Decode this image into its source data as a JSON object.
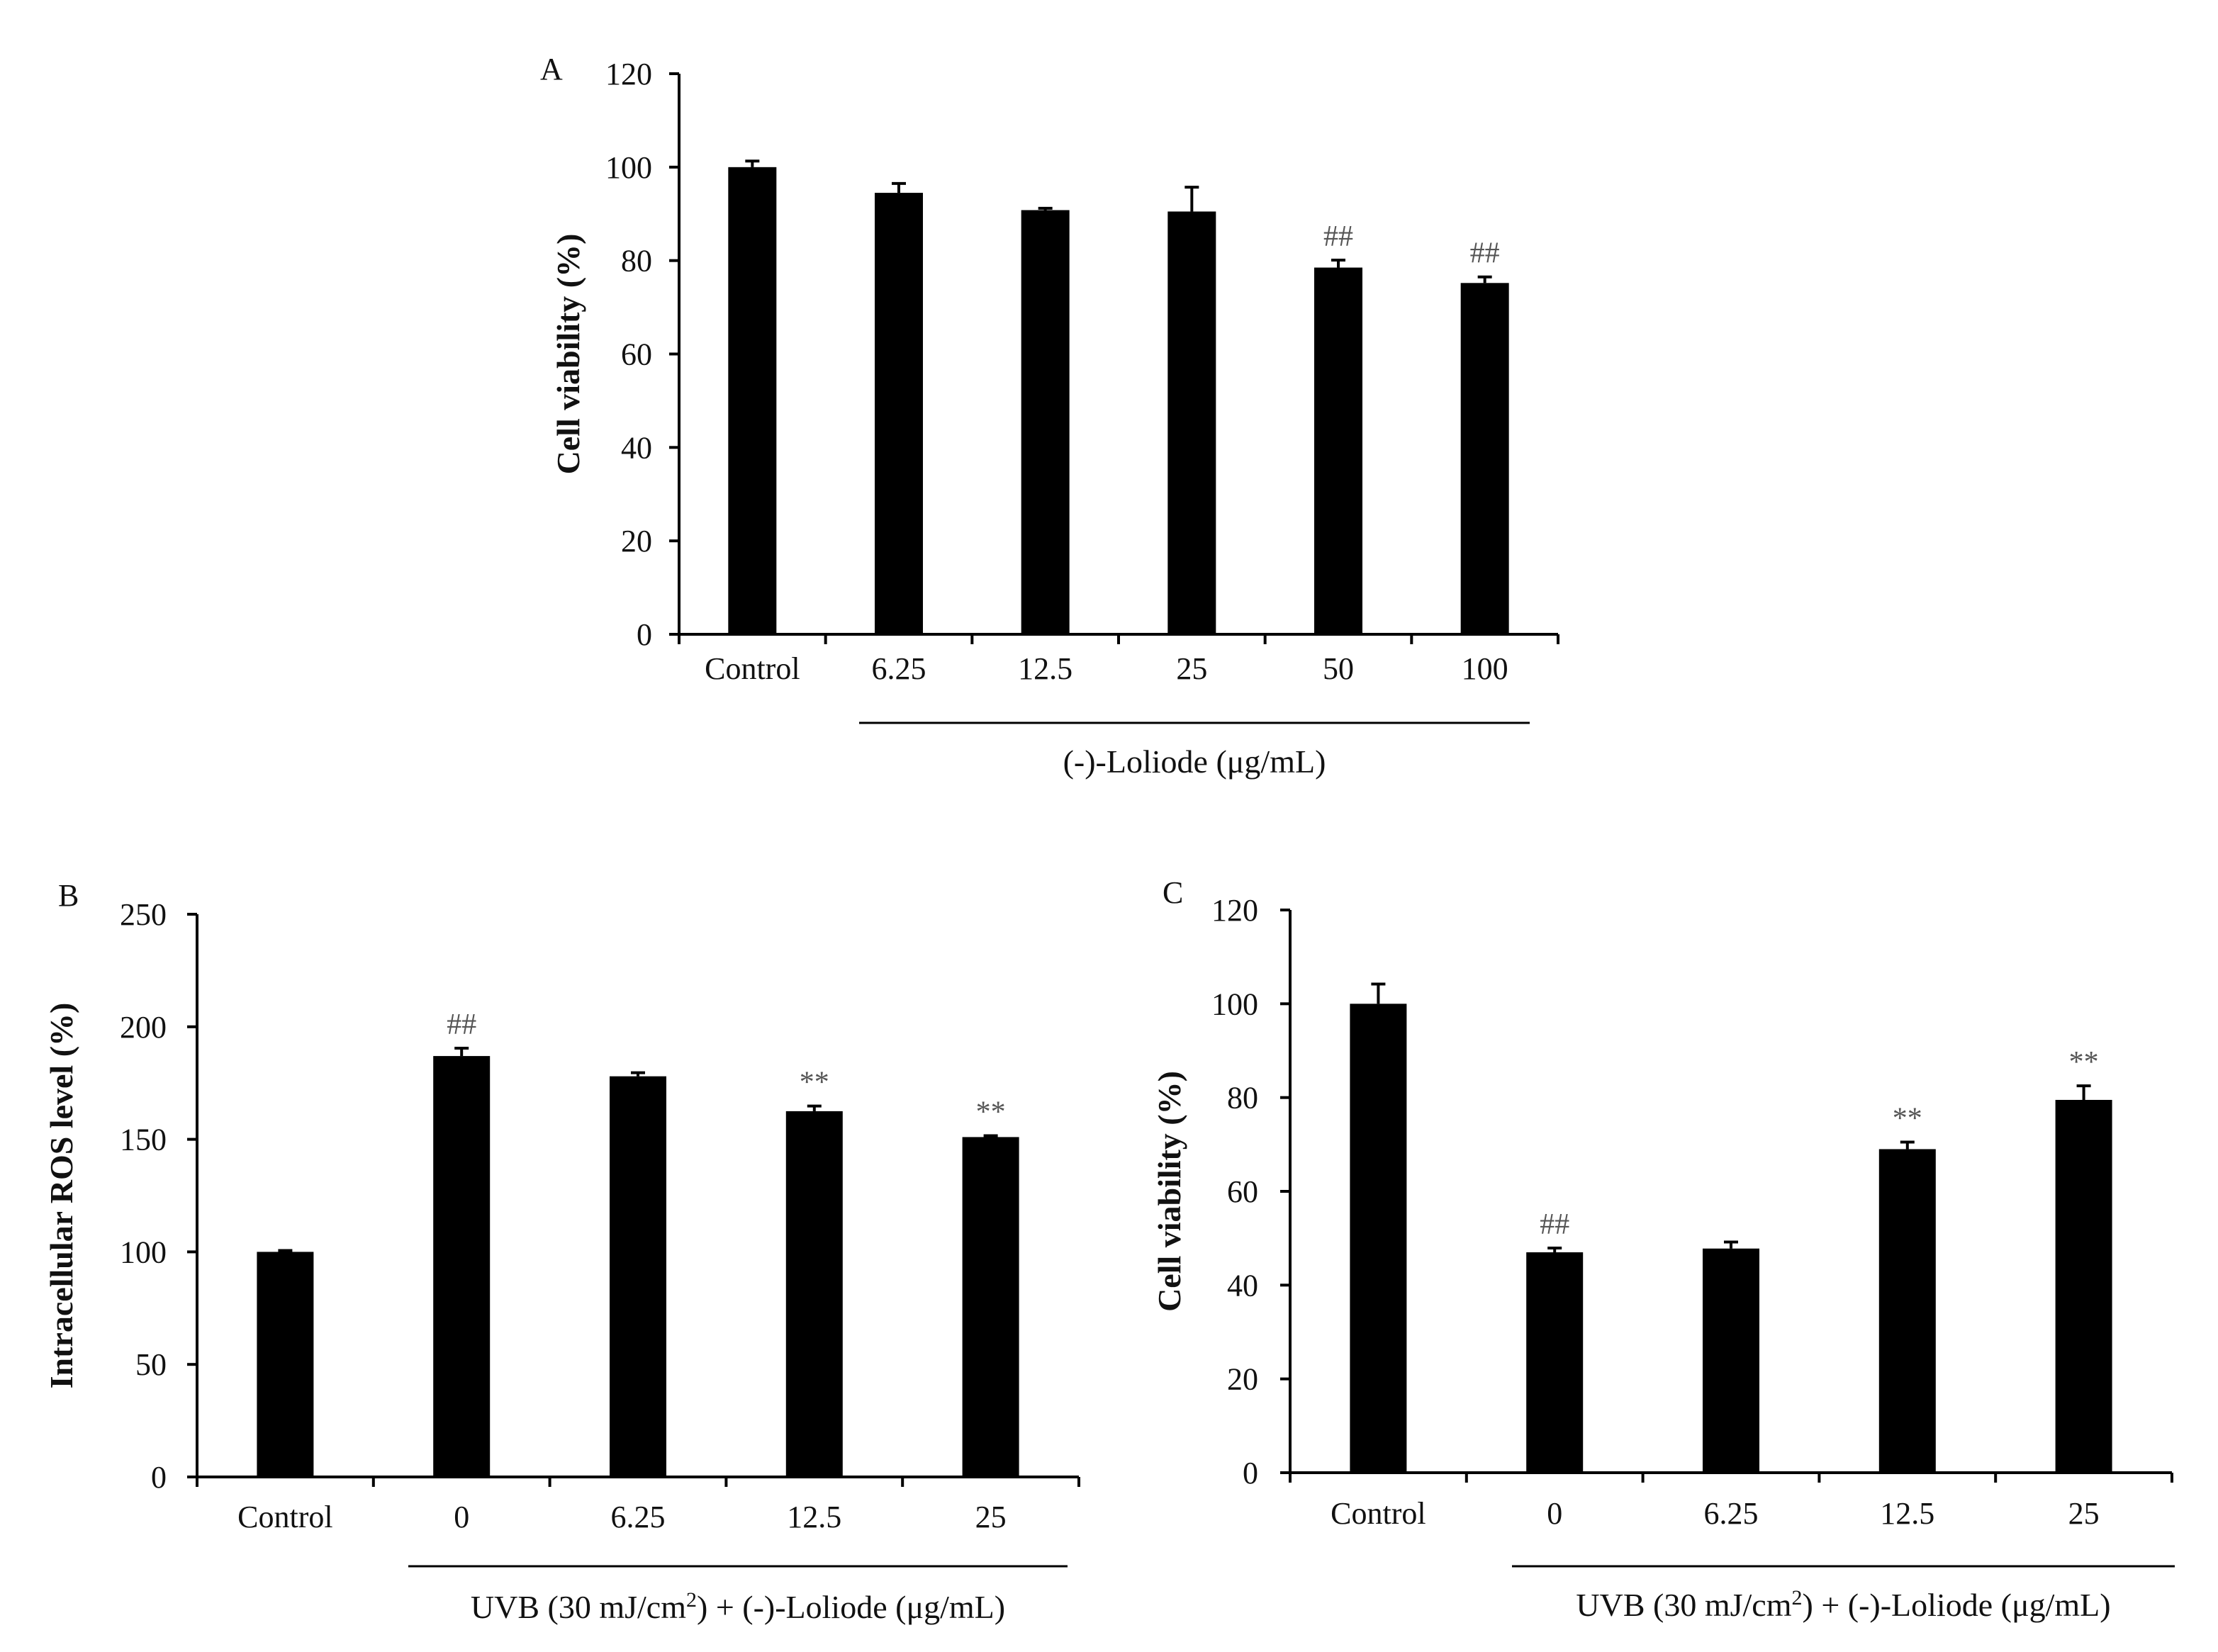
{
  "chart_data": [
    {
      "panel": "A",
      "type": "bar",
      "categories": [
        "Control",
        "6.25",
        "12.5",
        "25",
        "50",
        "100"
      ],
      "values": [
        100,
        94.5,
        90.8,
        90.5,
        78.5,
        75.2
      ],
      "errors": [
        1.3,
        2.0,
        0.4,
        5.2,
        1.6,
        1.3
      ],
      "significance": [
        "",
        "",
        "",
        "",
        "##",
        "##"
      ],
      "ylabel": "Cell viability (%)",
      "ylim": [
        0,
        120
      ],
      "yticks": [
        0,
        20,
        40,
        60,
        80,
        100,
        120
      ],
      "group_label": "(-)-Loliode (μg/mL)",
      "bar_color": "#000000"
    },
    {
      "panel": "B",
      "type": "bar",
      "categories": [
        "Control",
        "0",
        "6.25",
        "12.5",
        "25"
      ],
      "values": [
        100,
        187,
        178,
        162.5,
        151
      ],
      "errors": [
        0.6,
        3.5,
        1.6,
        2.3,
        0.6
      ],
      "significance": [
        "",
        "##",
        "",
        "**",
        "**"
      ],
      "ylabel": "Intracellular ROS level (%)",
      "ylim": [
        0,
        250
      ],
      "yticks": [
        0,
        50,
        100,
        150,
        200,
        250
      ],
      "group_label": {
        "prefix": "UVB (30 mJ/cm",
        "superscript": "2",
        "suffix": ") + (-)-Loliode (μg/mL)"
      },
      "bar_color": "#000000"
    },
    {
      "panel": "C",
      "type": "bar",
      "categories": [
        "Control",
        "0",
        "6.25",
        "12.5",
        "25"
      ],
      "values": [
        100,
        47,
        47.8,
        69,
        79.5
      ],
      "errors": [
        4.2,
        0.9,
        1.4,
        1.5,
        3.0
      ],
      "significance": [
        "",
        "##",
        "",
        "**",
        "**"
      ],
      "ylabel": "Cell viability (%)",
      "ylim": [
        0,
        120
      ],
      "yticks": [
        0,
        20,
        40,
        60,
        80,
        100,
        120
      ],
      "group_label": {
        "prefix": "UVB (30 mJ/cm",
        "superscript": "2",
        "suffix": ") + (-)-Loliode (μg/mL)"
      },
      "bar_color": "#000000"
    }
  ]
}
